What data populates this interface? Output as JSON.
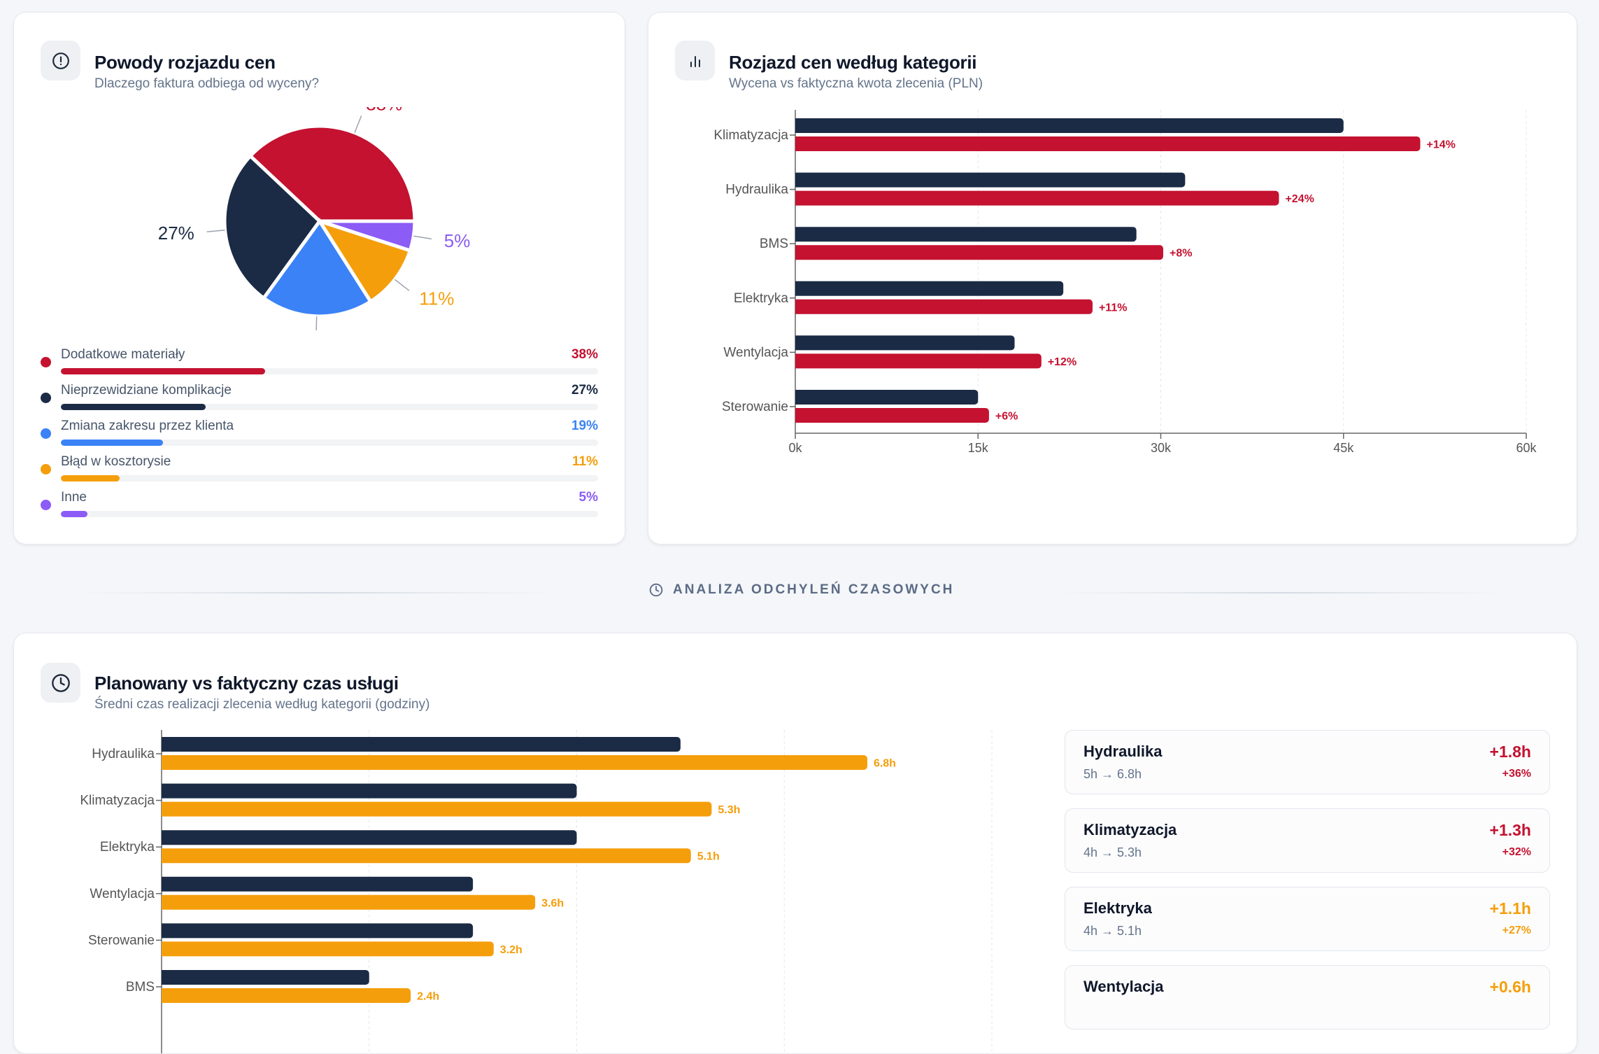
{
  "colors": {
    "navy": "#1b2b45",
    "red": "#c41230",
    "blue": "#3b82f6",
    "orange": "#f59e0b",
    "purple": "#8b5cf6",
    "grid": "#e5e7eb",
    "axis": "#666666",
    "tick_text": "#555555"
  },
  "reasons_card": {
    "icon": "alert-circle-icon",
    "title": "Powody rozjazdu cen",
    "subtitle": "Dlaczego faktura odbiega od wyceny?",
    "items": [
      {
        "label": "Dodatkowe materiały",
        "value": 38,
        "pct_label": "38%",
        "color": "#c41230"
      },
      {
        "label": "Nieprzewidziane komplikacje",
        "value": 27,
        "pct_label": "27%",
        "color": "#1b2b45"
      },
      {
        "label": "Zmiana zakresu przez klienta",
        "value": 19,
        "pct_label": "19%",
        "color": "#3b82f6"
      },
      {
        "label": "Błąd w kosztorysie",
        "value": 11,
        "pct_label": "11%",
        "color": "#f59e0b"
      },
      {
        "label": "Inne",
        "value": 5,
        "pct_label": "5%",
        "color": "#8b5cf6"
      }
    ]
  },
  "price_card": {
    "icon": "bar-chart-icon",
    "title": "Rozjazd cen według kategorii",
    "subtitle": "Wycena vs faktyczna kwota zlecenia (PLN)"
  },
  "section_divider": {
    "icon": "clock-icon",
    "label": "ANALIZA ODCHYLEŃ CZASOWYCH"
  },
  "time_card": {
    "icon": "clock-icon",
    "title": "Planowany vs faktyczny czas usługi",
    "subtitle": "Średni czas realizacji zlecenia według kategorii (godziny)",
    "summary": [
      {
        "name": "Hydraulika",
        "detail": "5h → 6.8h",
        "delta": "+1.8h",
        "pct": "+36%",
        "color": "#c41230"
      },
      {
        "name": "Klimatyzacja",
        "detail": "4h → 5.3h",
        "delta": "+1.3h",
        "pct": "+32%",
        "color": "#c41230"
      },
      {
        "name": "Elektryka",
        "detail": "4h → 5.1h",
        "delta": "+1.1h",
        "pct": "+27%",
        "color": "#f59e0b"
      },
      {
        "name": "Wentylacja",
        "delta": "+0.6h",
        "color": "#f59e0b"
      }
    ]
  },
  "chart_data": [
    {
      "type": "pie",
      "title": "Powody rozjazdu cen",
      "categories": [
        "Dodatkowe materiały",
        "Nieprzewidziane komplikacje",
        "Zmiana zakresu przez klienta",
        "Błąd w kosztorysie",
        "Inne"
      ],
      "values": [
        38,
        27,
        19,
        11,
        5
      ],
      "labels": [
        "38%",
        "27%",
        "19%",
        "11%",
        "5%"
      ],
      "colors": [
        "#c41230",
        "#1b2b45",
        "#3b82f6",
        "#f59e0b",
        "#8b5cf6"
      ]
    },
    {
      "type": "bar",
      "orientation": "horizontal",
      "title": "Rozjazd cen według kategorii",
      "categories": [
        "Klimatyzacja",
        "Hydraulika",
        "BMS",
        "Elektryka",
        "Wentylacja",
        "Sterowanie"
      ],
      "series": [
        {
          "values": [
            45000,
            32000,
            28000,
            22000,
            18000,
            15000
          ],
          "color": "#1b2b45"
        },
        {
          "values": [
            51300,
            39700,
            30200,
            24400,
            20200,
            15900
          ],
          "color": "#c41230",
          "data_labels": [
            "+14%",
            "+24%",
            "+8%",
            "+11%",
            "+12%",
            "+6%"
          ]
        }
      ],
      "xlim": [
        0,
        60000
      ],
      "xticks": [
        0,
        15000,
        30000,
        45000,
        60000
      ],
      "xtick_labels": [
        "0k",
        "15k",
        "30k",
        "45k",
        "60k"
      ],
      "grid": true
    },
    {
      "type": "bar",
      "orientation": "horizontal",
      "title": "Planowany vs faktyczny czas usługi",
      "categories": [
        "Hydraulika",
        "Klimatyzacja",
        "Elektryka",
        "Wentylacja",
        "Sterowanie",
        "BMS"
      ],
      "series": [
        {
          "values": [
            5,
            4,
            4,
            3,
            3,
            2
          ],
          "color": "#1b2b45"
        },
        {
          "values": [
            6.8,
            5.3,
            5.1,
            3.6,
            3.2,
            2.4
          ],
          "color": "#f59e0b",
          "data_labels": [
            "6.8h",
            "5.3h",
            "5.1h",
            "3.6h",
            "3.2h",
            "2.4h"
          ]
        }
      ],
      "xlim": [
        0,
        8
      ],
      "xticks": [
        0,
        2,
        4,
        6,
        8
      ],
      "grid": true
    }
  ]
}
